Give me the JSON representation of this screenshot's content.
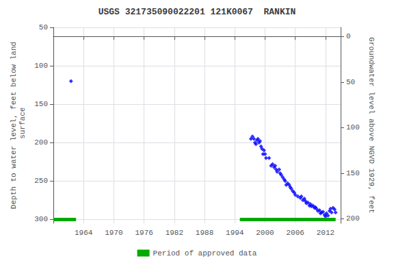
{
  "chart_data": {
    "type": "scatter",
    "title": "USGS 321735090022201 121K0067  RANKIN",
    "ylabel": "Depth to water level, feet below land\n surface",
    "y2label": "Groundwater level above NGVD 1929, feet",
    "xlim": [
      1958,
      2015
    ],
    "xticks": [
      1964,
      1970,
      1976,
      1982,
      1988,
      1994,
      2000,
      2006,
      2012
    ],
    "ylim": [
      305,
      50
    ],
    "yticks": [
      50,
      100,
      150,
      200,
      250,
      300
    ],
    "y2lim": [
      205,
      -10
    ],
    "y2ticks": [
      200,
      150,
      100,
      50,
      0
    ],
    "grid": true,
    "legend": "bottom",
    "series": [
      {
        "type": "scatter",
        "color": "#0000ff",
        "marker": "diamond",
        "x": [
          1961.5,
          1997.2,
          1997.5,
          1997.8,
          1998.0,
          1998.2,
          1998.4,
          1998.6,
          1998.8,
          1999.0,
          1999.2,
          1999.4,
          1999.6,
          1999.8,
          2000.0,
          2000.2,
          2000.8,
          2001.2,
          2001.5,
          2001.8,
          2002.0,
          2002.2,
          2002.4,
          2002.8,
          2003.0,
          2003.2,
          2003.5,
          2003.8,
          2004.0,
          2004.2,
          2004.5,
          2004.8,
          2005.0,
          2005.2,
          2005.5,
          2005.8,
          2006.0,
          2006.5,
          2007.0,
          2007.2,
          2007.5,
          2007.8,
          2008.0,
          2008.2,
          2008.5,
          2008.8,
          2009.0,
          2009.2,
          2009.5,
          2009.8,
          2010.0,
          2010.2,
          2010.5,
          2010.8,
          2011.0,
          2011.2,
          2011.5,
          2011.8,
          2012.0,
          2012.2,
          2012.5,
          2012.8,
          2013.0,
          2013.2,
          2013.5,
          2013.8,
          2014.0
        ],
        "values": [
          120,
          195,
          192,
          195,
          200,
          202,
          197,
          195,
          200,
          198,
          205,
          208,
          215,
          210,
          215,
          220,
          220,
          230,
          228,
          232,
          230,
          235,
          238,
          235,
          240,
          242,
          245,
          248,
          250,
          255,
          253,
          255,
          258,
          260,
          263,
          265,
          268,
          270,
          272,
          270,
          275,
          273,
          276,
          279,
          278,
          282,
          280,
          283,
          282,
          285,
          284,
          286,
          289,
          288,
          292,
          291,
          290,
          294,
          296,
          292,
          295,
          289,
          286,
          291,
          285,
          287,
          291
        ]
      },
      {
        "type": "line",
        "name": "Period of approved data",
        "color": "#00aa00",
        "segments": [
          [
            1958,
            1962.5
          ],
          [
            1995,
            2014
          ]
        ],
        "level": 300
      }
    ]
  }
}
